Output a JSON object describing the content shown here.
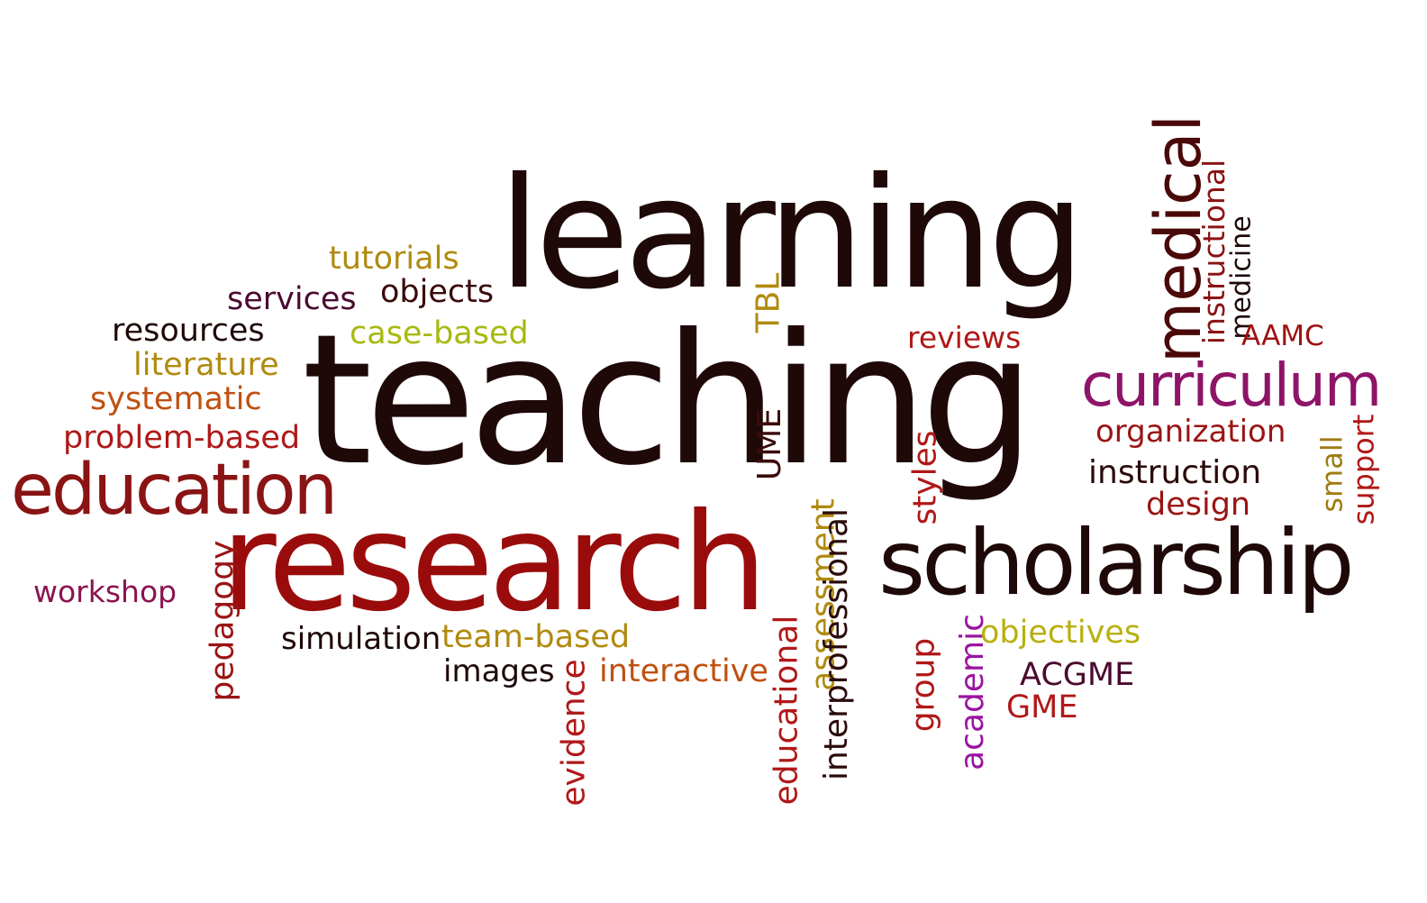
{
  "words": {
    "learning": {
      "text": "learning",
      "color": "#1e0808"
    },
    "teaching": {
      "text": "teaching",
      "color": "#1e0808"
    },
    "research": {
      "text": "research",
      "color": "#9a0c0c"
    },
    "scholarship": {
      "text": "scholarship",
      "color": "#1e0808"
    },
    "education": {
      "text": "education",
      "color": "#8a1414"
    },
    "curriculum": {
      "text": "curriculum",
      "color": "#8e1468"
    },
    "medical": {
      "text": "medical",
      "color": "#4a0808"
    },
    "instructional": {
      "text": "instructional",
      "color": "#8a1414"
    },
    "medicine": {
      "text": "medicine",
      "color": "#1e0808"
    },
    "aamc": {
      "text": "AAMC",
      "color": "#a01010"
    },
    "reviews": {
      "text": "reviews",
      "color": "#b01818"
    },
    "organization": {
      "text": "organization",
      "color": "#9a1414"
    },
    "instruction": {
      "text": "instruction",
      "color": "#2a0a0a"
    },
    "design": {
      "text": "design",
      "color": "#9a1414"
    },
    "small": {
      "text": "small",
      "color": "#a07c10"
    },
    "support": {
      "text": "support",
      "color": "#b01818"
    },
    "tutorials": {
      "text": "tutorials",
      "color": "#b08a10"
    },
    "objects": {
      "text": "objects",
      "color": "#3a0a0a"
    },
    "services": {
      "text": "services",
      "color": "#4a0a30"
    },
    "resources": {
      "text": "resources",
      "color": "#1e0808"
    },
    "case_based": {
      "text": "case-based",
      "color": "#a8b810"
    },
    "literature": {
      "text": "literature",
      "color": "#b08a10"
    },
    "systematic": {
      "text": "systematic",
      "color": "#c05010"
    },
    "problem_based": {
      "text": "problem-based",
      "color": "#b01818"
    },
    "tbl": {
      "text": "TBL",
      "color": "#b08a10"
    },
    "ume": {
      "text": "UME",
      "color": "#3a0a0a"
    },
    "styles": {
      "text": "styles",
      "color": "#b01818"
    },
    "workshop": {
      "text": "workshop",
      "color": "#8a1450"
    },
    "pedagogy": {
      "text": "pedagogy",
      "color": "#9a1414"
    },
    "simulation": {
      "text": "simulation",
      "color": "#1e0808"
    },
    "team_based": {
      "text": "team-based",
      "color": "#b08a10"
    },
    "images": {
      "text": "images",
      "color": "#1e0808"
    },
    "interactive": {
      "text": "interactive",
      "color": "#c05010"
    },
    "evidence": {
      "text": "evidence",
      "color": "#b01818"
    },
    "educational": {
      "text": "educational",
      "color": "#b01818"
    },
    "assessment": {
      "text": "assessment",
      "color": "#b08a10"
    },
    "interprofessional": {
      "text": "interprofessional",
      "color": "#2a0a0a"
    },
    "group": {
      "text": "group",
      "color": "#b01818"
    },
    "academic": {
      "text": "academic",
      "color": "#9a14a0"
    },
    "objectives": {
      "text": "objectives",
      "color": "#b8b010"
    },
    "acgme": {
      "text": "ACGME",
      "color": "#4a0a30"
    },
    "gme": {
      "text": "GME",
      "color": "#b01818"
    }
  }
}
